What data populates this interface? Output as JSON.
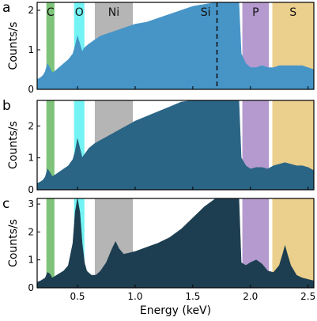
{
  "chart_data": [
    {
      "panel_label": "a",
      "type": "area",
      "ylabel": "Counts/s",
      "xlim": [
        0.15,
        2.55
      ],
      "ylim": [
        0,
        2.2
      ],
      "yticks": [
        0,
        1,
        2
      ],
      "color": "#4795c7",
      "regions": [
        {
          "label": "C",
          "from": 0.23,
          "to": 0.3,
          "color": "#7fc47a"
        },
        {
          "label": "O",
          "from": 0.47,
          "to": 0.56,
          "color": "#73f3f3"
        },
        {
          "label": "Ni",
          "from": 0.65,
          "to": 0.98,
          "color": "#b5b5b5"
        },
        {
          "label": "P",
          "from": 1.93,
          "to": 2.16,
          "color": "#b59acf"
        },
        {
          "label": "S",
          "from": 2.19,
          "to": 2.55,
          "color": "#ebcf8c"
        }
      ],
      "annotations": [
        {
          "label": "Si",
          "x": 1.71,
          "style": "dashed-line"
        }
      ],
      "series": [
        {
          "x": [
            0.15,
            0.18,
            0.2,
            0.22,
            0.24,
            0.26,
            0.28,
            0.3,
            0.34,
            0.38,
            0.42,
            0.46,
            0.48,
            0.5,
            0.52,
            0.54,
            0.56,
            0.6,
            0.65,
            0.7,
            0.75,
            0.8,
            0.85,
            0.9,
            0.95,
            1.0,
            1.1,
            1.2,
            1.3,
            1.4,
            1.5,
            1.6,
            1.7,
            1.8,
            1.9,
            1.92,
            1.96,
            2.0,
            2.05,
            2.1,
            2.15,
            2.2,
            2.25,
            2.3,
            2.35,
            2.4,
            2.45,
            2.5,
            2.55
          ],
          "y": [
            0.25,
            0.3,
            0.35,
            0.45,
            0.65,
            0.55,
            0.42,
            0.45,
            0.55,
            0.65,
            0.75,
            0.9,
            1.1,
            1.35,
            1.15,
            0.95,
            1.05,
            1.15,
            1.25,
            1.35,
            1.4,
            1.45,
            1.5,
            1.55,
            1.6,
            1.65,
            1.7,
            1.8,
            1.9,
            2.0,
            2.1,
            2.15,
            2.2,
            2.2,
            2.2,
            0.9,
            0.65,
            0.55,
            0.55,
            0.6,
            0.55,
            0.55,
            0.6,
            0.6,
            0.6,
            0.6,
            0.6,
            0.55,
            0.5
          ]
        }
      ]
    },
    {
      "panel_label": "b",
      "type": "area",
      "ylabel": "Counts/s",
      "xlim": [
        0.15,
        2.55
      ],
      "ylim": [
        0,
        2.8
      ],
      "yticks": [
        0,
        1,
        2
      ],
      "color": "#2a6585",
      "regions": [
        {
          "label": "",
          "from": 0.23,
          "to": 0.3,
          "color": "#7fc47a"
        },
        {
          "label": "",
          "from": 0.47,
          "to": 0.56,
          "color": "#73f3f3"
        },
        {
          "label": "",
          "from": 0.65,
          "to": 0.98,
          "color": "#b5b5b5"
        },
        {
          "label": "",
          "from": 1.93,
          "to": 2.16,
          "color": "#b59acf"
        },
        {
          "label": "",
          "from": 2.19,
          "to": 2.55,
          "color": "#ebcf8c"
        }
      ],
      "series": [
        {
          "x": [
            0.15,
            0.18,
            0.2,
            0.22,
            0.24,
            0.26,
            0.28,
            0.3,
            0.34,
            0.38,
            0.42,
            0.46,
            0.48,
            0.5,
            0.52,
            0.54,
            0.56,
            0.6,
            0.65,
            0.7,
            0.75,
            0.8,
            0.85,
            0.9,
            0.95,
            1.0,
            1.1,
            1.2,
            1.3,
            1.4,
            1.5,
            1.6,
            1.7,
            1.8,
            1.9,
            1.92,
            1.96,
            2.0,
            2.05,
            2.1,
            2.15,
            2.2,
            2.25,
            2.3,
            2.35,
            2.4,
            2.45,
            2.5,
            2.55
          ],
          "y": [
            0.2,
            0.25,
            0.3,
            0.4,
            0.65,
            0.55,
            0.42,
            0.45,
            0.55,
            0.65,
            0.75,
            0.95,
            1.2,
            1.6,
            1.3,
            1.0,
            1.1,
            1.3,
            1.45,
            1.55,
            1.65,
            1.75,
            1.85,
            1.95,
            2.05,
            2.15,
            2.3,
            2.45,
            2.6,
            2.75,
            2.8,
            2.8,
            2.8,
            2.8,
            2.8,
            1.0,
            0.75,
            0.65,
            0.7,
            0.7,
            0.65,
            0.75,
            0.8,
            0.85,
            0.8,
            0.75,
            0.75,
            0.7,
            0.6
          ]
        }
      ]
    },
    {
      "panel_label": "c",
      "type": "area",
      "ylabel": "Counts/s",
      "xlabel": "Energy (keV)",
      "xlim": [
        0.15,
        2.55
      ],
      "ylim": [
        0,
        3.2
      ],
      "yticks": [
        0,
        1,
        2,
        3
      ],
      "xticks": [
        0.5,
        1.0,
        1.5,
        2.0,
        2.5
      ],
      "color": "#1d3e50",
      "regions": [
        {
          "label": "",
          "from": 0.23,
          "to": 0.3,
          "color": "#7fc47a"
        },
        {
          "label": "",
          "from": 0.47,
          "to": 0.56,
          "color": "#73f3f3"
        },
        {
          "label": "",
          "from": 0.65,
          "to": 0.98,
          "color": "#b5b5b5"
        },
        {
          "label": "",
          "from": 1.93,
          "to": 2.16,
          "color": "#b59acf"
        },
        {
          "label": "",
          "from": 2.19,
          "to": 2.55,
          "color": "#ebcf8c"
        }
      ],
      "series": [
        {
          "x": [
            0.15,
            0.18,
            0.2,
            0.22,
            0.24,
            0.26,
            0.28,
            0.3,
            0.34,
            0.38,
            0.42,
            0.46,
            0.48,
            0.5,
            0.52,
            0.54,
            0.56,
            0.58,
            0.62,
            0.66,
            0.7,
            0.75,
            0.8,
            0.83,
            0.86,
            0.9,
            0.95,
            1.0,
            1.1,
            1.2,
            1.3,
            1.4,
            1.5,
            1.6,
            1.7,
            1.8,
            1.9,
            1.92,
            1.96,
            2.0,
            2.05,
            2.1,
            2.15,
            2.2,
            2.25,
            2.28,
            2.3,
            2.32,
            2.35,
            2.4,
            2.45,
            2.5,
            2.55
          ],
          "y": [
            0.2,
            0.25,
            0.3,
            0.35,
            0.55,
            0.5,
            0.35,
            0.4,
            0.5,
            0.6,
            0.8,
            1.6,
            2.7,
            3.2,
            2.7,
            1.6,
            0.9,
            0.6,
            0.45,
            0.45,
            0.6,
            0.9,
            1.4,
            1.65,
            1.4,
            1.2,
            1.25,
            1.3,
            1.45,
            1.6,
            1.8,
            2.1,
            2.5,
            2.9,
            3.2,
            3.2,
            3.2,
            0.9,
            0.8,
            0.9,
            1.0,
            0.85,
            0.6,
            0.55,
            0.8,
            1.2,
            1.5,
            1.2,
            0.8,
            0.45,
            0.35,
            0.3,
            0.25
          ]
        }
      ]
    }
  ]
}
